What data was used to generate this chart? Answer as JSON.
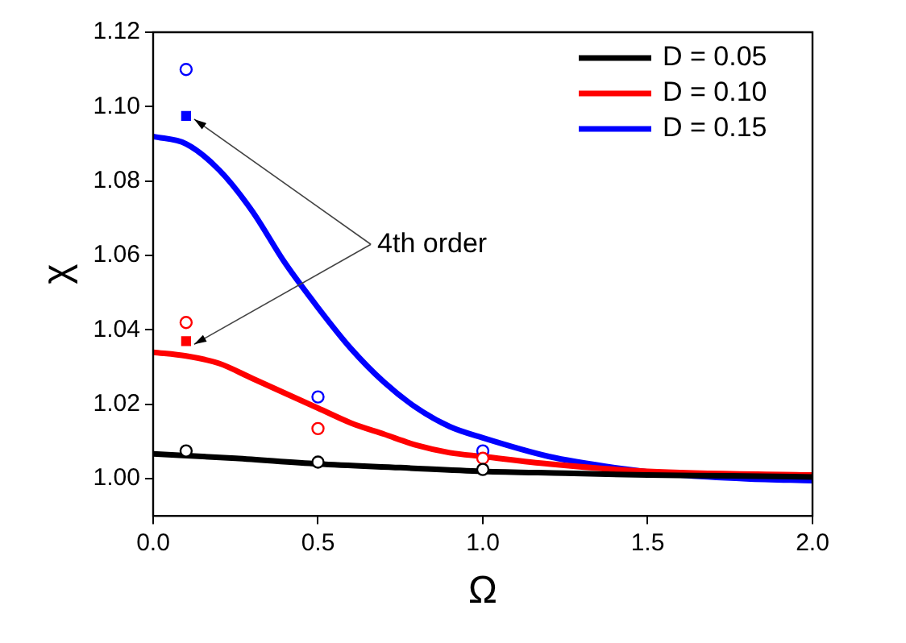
{
  "chart_data": {
    "type": "line",
    "xlabel": "Ω",
    "ylabel": "χ",
    "xlim": [
      0,
      2
    ],
    "xticks": [
      {
        "value": 0,
        "label": "0.0"
      },
      {
        "value": 0.5,
        "label": "0.5"
      },
      {
        "value": 1,
        "label": "1.0"
      },
      {
        "value": 1.5,
        "label": "1.5"
      },
      {
        "value": 2,
        "label": "2.0"
      }
    ],
    "ylim": [
      0.99,
      1.12
    ],
    "yticks": [
      {
        "value": 1,
        "label": "1.00"
      },
      1.02,
      1.04,
      1.06,
      1.08,
      {
        "value": 1.1,
        "label": "1.10"
      },
      1.12
    ],
    "grid": false,
    "legend": "top right",
    "marker": "none",
    "line_style": "solid",
    "annotations": [
      {
        "text": "4th order",
        "x": 0.1,
        "y": 1.0975
      }
    ],
    "series": [
      {
        "name": "D = 0.05",
        "color": "#000000",
        "x": [
          0,
          0.25,
          0.5,
          0.75,
          1,
          1.25,
          1.5,
          1.75,
          2
        ],
        "values": [
          1.0067,
          1.0055,
          1.004,
          1.003,
          1.002,
          1.0015,
          1.001,
          1.0008,
          1.0005
        ]
      },
      {
        "name": "D = 0.10",
        "color": "#ff0000",
        "x": [
          0,
          0.1,
          0.2,
          0.3,
          0.4,
          0.5,
          0.6,
          0.7,
          0.8,
          0.9,
          1,
          1.2,
          1.5,
          2
        ],
        "values": [
          1.034,
          1.033,
          1.031,
          1.027,
          1.023,
          1.019,
          1.015,
          1.012,
          1.009,
          1.007,
          1.006,
          1.004,
          1.002,
          1.001
        ]
      },
      {
        "name": "D = 0.15",
        "color": "#0000ff",
        "x": [
          0,
          0.1,
          0.2,
          0.3,
          0.4,
          0.5,
          0.6,
          0.7,
          0.8,
          0.9,
          1,
          1.2,
          1.4,
          1.6,
          1.8,
          2
        ],
        "values": [
          1.092,
          1.09,
          1.083,
          1.072,
          1.058,
          1.046,
          1.035,
          1.026,
          1.019,
          1.014,
          1.011,
          1.006,
          1.003,
          1.001,
          1,
          0.9995
        ]
      },
      {
        "type": "scatter",
        "marker": "circle",
        "color": "#000000",
        "x": [
          0.1,
          0.5,
          1
        ],
        "values": [
          1.0075,
          1.0045,
          1.0025
        ]
      },
      {
        "type": "scatter",
        "marker": "circle",
        "color": "#ff0000",
        "x": [
          0.1,
          0.5,
          1
        ],
        "values": [
          1.042,
          1.0135,
          1.0055
        ]
      },
      {
        "type": "scatter",
        "marker": "circle",
        "color": "#0000ff",
        "x": [
          0.1,
          0.5,
          1
        ],
        "values": [
          1.11,
          1.022,
          1.0075
        ]
      },
      {
        "type": "scatter",
        "marker": "square",
        "color": "#ff0000",
        "x": [
          0.1
        ],
        "values": [
          1.037
        ]
      },
      {
        "type": "scatter",
        "marker": "square",
        "color": "#0000ff",
        "x": [
          0.1
        ],
        "values": [
          1.0975
        ]
      }
    ]
  }
}
